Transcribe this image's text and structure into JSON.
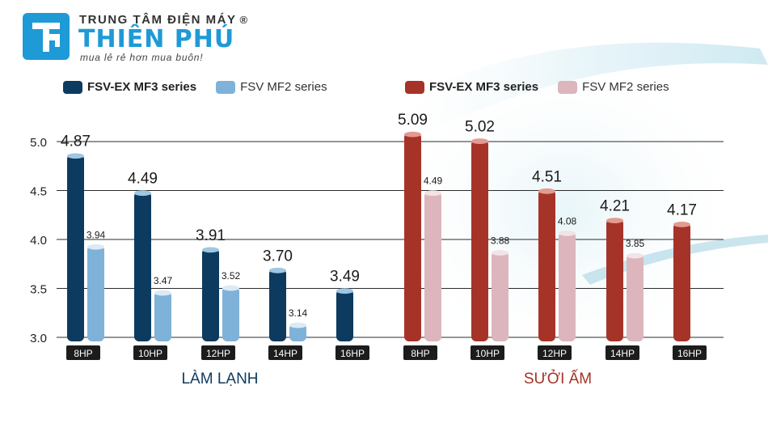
{
  "brand": {
    "top": "TRUNG TÂM ĐIỆN MÁY",
    "reg": "®",
    "name": "THIÊN PHÚ",
    "slogan": "mua lẻ rẻ hơn mua buôn!",
    "color": "#1e9ad6"
  },
  "chart_data": [
    {
      "type": "bar",
      "title": "LÀM LẠNH",
      "categories": [
        "8HP",
        "10HP",
        "12HP",
        "14HP",
        "16HP"
      ],
      "ylim": [
        3.0,
        5.0
      ],
      "yticks": [
        "3.0",
        "3.5",
        "4.0",
        "4.5",
        "5.0"
      ],
      "series": [
        {
          "name": "FSV-EX MF3 series",
          "values": [
            4.87,
            4.49,
            3.91,
            3.7,
            3.49
          ],
          "labels": [
            "4.87",
            "4.49",
            "3.91",
            "3.70",
            "3.49"
          ],
          "color": "#0d3a5f",
          "cap": "#9fc7e3"
        },
        {
          "name": "FSV MF2 series",
          "values": [
            3.94,
            3.47,
            3.52,
            3.14,
            null
          ],
          "labels": [
            "3.94",
            "3.47",
            "3.52",
            "3.14",
            null
          ],
          "color": "#7fb2d8",
          "cap": "#dceaf5"
        }
      ],
      "title_color": "#0d3a5f"
    },
    {
      "type": "bar",
      "title": "SƯỞI ẤM",
      "categories": [
        "8HP",
        "10HP",
        "12HP",
        "14HP",
        "16HP"
      ],
      "ylim": [
        3.0,
        5.0
      ],
      "series": [
        {
          "name": "FSV-EX MF3 series",
          "values": [
            5.09,
            5.02,
            4.51,
            4.21,
            4.17
          ],
          "labels": [
            "5.09",
            "5.02",
            "4.51",
            "4.21",
            "4.17"
          ],
          "color": "#a63328",
          "cap": "#e49a90"
        },
        {
          "name": "FSV MF2 series",
          "values": [
            4.49,
            3.88,
            4.08,
            3.85,
            null
          ],
          "labels": [
            "4.49",
            "3.88",
            "4.08",
            "3.85",
            null
          ],
          "color": "#dcb6bc",
          "cap": "#f3e3e6"
        }
      ],
      "title_color": "#a63328"
    }
  ]
}
